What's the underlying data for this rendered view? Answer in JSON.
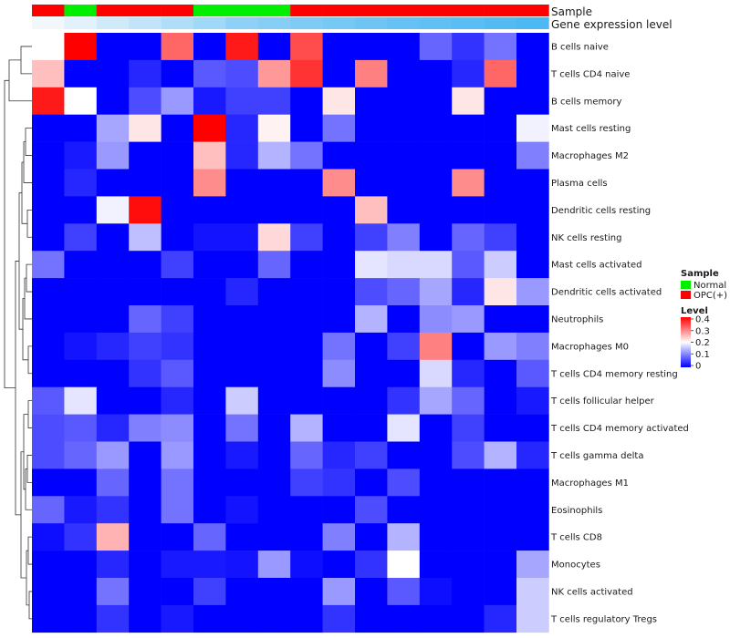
{
  "chart_data": {
    "type": "heatmap",
    "columns": 16,
    "annotations": [
      {
        "name": "Sample",
        "colors": [
          "#ff0000",
          "#00ee00",
          "#ff0000",
          "#ff0000",
          "#ff0000",
          "#00ee00",
          "#00ee00",
          "#00ee00",
          "#ff0000",
          "#ff0000",
          "#ff0000",
          "#ff0000",
          "#ff0000",
          "#ff0000",
          "#ff0000",
          "#ff0000"
        ]
      },
      {
        "name": "Gene expression level",
        "values": [
          0.0,
          0.1,
          0.2,
          0.3,
          0.4,
          0.5,
          0.6,
          0.65,
          0.7,
          0.75,
          0.8,
          0.85,
          0.88,
          0.92,
          0.96,
          1.0
        ]
      }
    ],
    "rows": [
      {
        "label": "B cells naive",
        "values": [
          0.2,
          0.4,
          0,
          0,
          0.32,
          0,
          0.38,
          0,
          0.34,
          0,
          0,
          0,
          0.08,
          0.04,
          0.09,
          0
        ]
      },
      {
        "label": "T cells CD4 naive",
        "values": [
          0.25,
          0,
          0,
          0.03,
          0,
          0.07,
          0.06,
          0.28,
          0.36,
          0,
          0.3,
          0,
          0,
          0.03,
          0.32,
          0
        ]
      },
      {
        "label": "B cells memory",
        "values": [
          0.38,
          0.2,
          0,
          0.06,
          0.12,
          0.02,
          0.05,
          0.05,
          0,
          0.22,
          0,
          0,
          0,
          0.22,
          0,
          0
        ]
      },
      {
        "label": "Mast cells resting",
        "values": [
          0,
          0,
          0.13,
          0.22,
          0,
          0.4,
          0.03,
          0.21,
          0,
          0.09,
          0,
          0,
          0,
          0,
          0,
          0.19
        ]
      },
      {
        "label": "Macrophages M2",
        "values": [
          0,
          0.02,
          0.12,
          0,
          0,
          0.25,
          0.03,
          0.14,
          0.09,
          0,
          0,
          0,
          0,
          0,
          0,
          0.1
        ]
      },
      {
        "label": "Plasma cells",
        "values": [
          0,
          0.03,
          0,
          0,
          0,
          0.29,
          0,
          0,
          0,
          0.29,
          0,
          0,
          0,
          0.29,
          0,
          0
        ]
      },
      {
        "label": "Dendritic cells resting",
        "values": [
          0,
          0,
          0.19,
          0.39,
          0,
          0,
          0,
          0,
          0,
          0,
          0.25,
          0,
          0,
          0,
          0,
          0
        ]
      },
      {
        "label": "NK cells resting",
        "values": [
          0,
          0.05,
          0,
          0.15,
          0,
          0.015,
          0.015,
          0.23,
          0.05,
          0,
          0.05,
          0.1,
          0,
          0.08,
          0.05,
          0
        ]
      },
      {
        "label": "Mast cells activated",
        "values": [
          0.09,
          0,
          0,
          0,
          0.05,
          0,
          0,
          0.08,
          0,
          0,
          0.18,
          0.17,
          0.17,
          0.07,
          0.16,
          0
        ]
      },
      {
        "label": "Dendritic cells activated",
        "values": [
          0,
          0,
          0,
          0,
          0,
          0,
          0.03,
          0,
          0,
          0,
          0.06,
          0.08,
          0.13,
          0.03,
          0.22,
          0.12
        ]
      },
      {
        "label": "Neutrophils",
        "values": [
          0,
          0,
          0,
          0.08,
          0.05,
          0,
          0,
          0,
          0,
          0,
          0.14,
          0,
          0.11,
          0.12,
          0,
          0
        ]
      },
      {
        "label": "Macrophages M0",
        "values": [
          0,
          0.015,
          0.03,
          0.05,
          0.04,
          0,
          0,
          0,
          0,
          0.09,
          0,
          0.05,
          0.3,
          0,
          0.12,
          0.1
        ]
      },
      {
        "label": "T cells CD4 memory resting",
        "values": [
          0,
          0,
          0,
          0.04,
          0.07,
          0,
          0,
          0,
          0,
          0.11,
          0,
          0,
          0.17,
          0.03,
          0,
          0.07
        ]
      },
      {
        "label": "T cells follicular helper",
        "values": [
          0.07,
          0.18,
          0,
          0,
          0.03,
          0,
          0.16,
          0,
          0,
          0,
          0,
          0.04,
          0.13,
          0.08,
          0,
          0.02
        ]
      },
      {
        "label": "T cells CD4 memory activated",
        "values": [
          0.06,
          0.07,
          0.03,
          0.1,
          0.11,
          0,
          0.09,
          0,
          0.14,
          0,
          0,
          0.18,
          0,
          0.05,
          0,
          0
        ]
      },
      {
        "label": "T cells gamma delta",
        "values": [
          0.06,
          0.08,
          0.12,
          0,
          0.12,
          0,
          0.02,
          0,
          0.08,
          0.03,
          0.05,
          0,
          0,
          0.06,
          0.14,
          0.03
        ]
      },
      {
        "label": "Macrophages M1",
        "values": [
          0,
          0,
          0.08,
          0,
          0.09,
          0,
          0,
          0,
          0.05,
          0.04,
          0,
          0.06,
          0,
          0,
          0,
          0
        ]
      },
      {
        "label": "Eosinophils",
        "values": [
          0.08,
          0.02,
          0.04,
          0,
          0.09,
          0,
          0.015,
          0,
          0,
          0,
          0.06,
          0,
          0,
          0,
          0,
          0
        ]
      },
      {
        "label": "T cells CD8",
        "values": [
          0.01,
          0.04,
          0.26,
          0,
          0,
          0.08,
          0,
          0,
          0,
          0.1,
          0,
          0.14,
          0,
          0,
          0,
          0
        ]
      },
      {
        "label": "Monocytes",
        "values": [
          0,
          0,
          0.03,
          0,
          0.02,
          0.02,
          0.015,
          0.12,
          0.01,
          0,
          0.04,
          0.2,
          0,
          0,
          0,
          0.13
        ]
      },
      {
        "label": "NK cells activated",
        "values": [
          0,
          0,
          0.09,
          0,
          0,
          0.05,
          0,
          0,
          0,
          0.12,
          0,
          0.07,
          0.01,
          0,
          0,
          0.16
        ]
      },
      {
        "label": "T cells regulatory  Tregs",
        "values": [
          0,
          0,
          0.04,
          0,
          0.02,
          0,
          0,
          0,
          0,
          0.04,
          0,
          0,
          0,
          0,
          0.03,
          0.16
        ]
      }
    ],
    "color_scale": {
      "min": 0,
      "max": 0.4,
      "low": "#0000ff",
      "mid": "#ffffff",
      "mid_value": 0.2,
      "high": "#ff0000"
    },
    "legend": {
      "sample_title": "Sample",
      "sample_items": [
        {
          "label": "Normal",
          "color": "#00ee00"
        },
        {
          "label": "OPC(+)",
          "color": "#ff0000"
        }
      ],
      "level_title": "Level",
      "level_ticks": [
        "0.4",
        "0.3",
        "0.2",
        "0.1",
        "0"
      ]
    }
  }
}
